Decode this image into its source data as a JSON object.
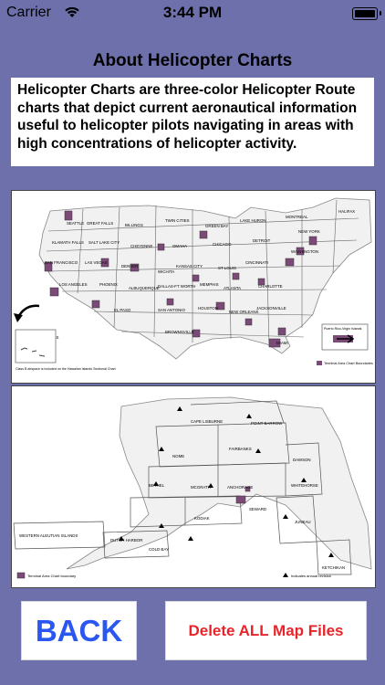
{
  "status_bar": {
    "carrier": "Carrier",
    "time": "3:44 PM"
  },
  "title": "About Helicopter Charts",
  "description": "Helicopter Charts are three-color Helicopter Route charts that depict current aeronautical information useful to helicopter pilots navigating in areas with high concentrations of helicopter activity.",
  "map_us": {
    "cities": [
      "SEATTLE",
      "GREAT FALLS",
      "BILLINGS",
      "TWIN CITIES",
      "GREEN BAY",
      "LAKE HURON",
      "MONTREAL",
      "HALIFAX",
      "KLAMATH FALLS",
      "SALT LAKE CITY",
      "CHEYENNE",
      "OMAHA",
      "CHICAGO",
      "DETROIT",
      "NEW YORK",
      "SAN FRANCISCO",
      "LAS VEGAS",
      "DENVER",
      "WICHITA",
      "KANSAS CITY",
      "ST LOUIS",
      "CINCINNATI",
      "WASHINGTON",
      "LOS ANGELES",
      "PHOENIX",
      "ALBUQUERQUE",
      "DALLAS-FT WORTH",
      "MEMPHIS",
      "ATLANTA",
      "CHARLOTTE",
      "EL PASO",
      "SAN ANTONIO",
      "HOUSTON",
      "NEW ORLEANS",
      "JACKSONVILLE",
      "MIAMI",
      "BROWNSVILLE",
      "HAWAIIAN ISLANDS"
    ],
    "note": "Class B airspace is included on the Hawaiian Islands Sectional Chart",
    "legend": "Terminal Area Chart Boundaries",
    "inset": "Puerto Rico-Virgin Islands"
  },
  "map_ak": {
    "cities": [
      "CAPE LISBURNE",
      "POINT BARROW",
      "NOME",
      "FAIRBANKS",
      "DAWSON",
      "BETHEL",
      "MCGRATH",
      "ANCHORAGE",
      "WHITEHORSE",
      "SEWARD",
      "KODIAK",
      "JUNEAU",
      "WESTERN ALEUTIAN ISLANDS",
      "DUTCH HARBOR",
      "COLD BAY",
      "KETCHIKAN"
    ],
    "legend": "Terminal Area Chart boundary",
    "legend2": "Indicates annual revision"
  },
  "buttons": {
    "back": "BACK",
    "delete": "Delete ALL Map Files"
  },
  "colors": {
    "background": "#6d70aa",
    "back_text": "#2a57f0",
    "delete_text": "#e8242a",
    "chart_box": "#7c4a78"
  }
}
